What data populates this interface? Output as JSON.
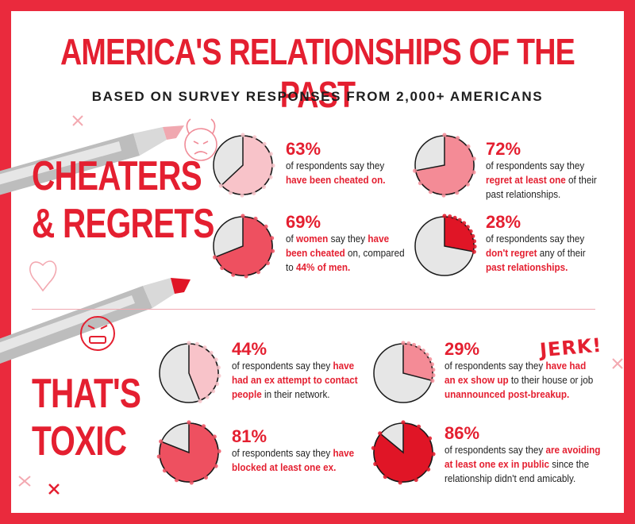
{
  "title": "AMERICA'S RELATIONSHIPS OF THE PAST",
  "subtitle": "BASED ON SURVEY RESPONSES FROM 2,000+ AMERICANS",
  "sections": {
    "cheaters": {
      "line1": "CHEATERS",
      "line2": "& REGRETS"
    },
    "toxic": {
      "line1": "THAT'S",
      "line2": "TOXIC"
    }
  },
  "jerk": "JERK!",
  "colors": {
    "accent": "#e41f30",
    "pink": "#f6b6bd",
    "grey": "#e6e6e6"
  },
  "stats": [
    {
      "id": "cheated",
      "value": 63,
      "pct": "63%",
      "fill": "#f8c3c9",
      "parts": [
        [
          "of respondents say they",
          false
        ],
        [
          "\n",
          false
        ],
        [
          "have been cheated on.",
          true
        ]
      ]
    },
    {
      "id": "regret",
      "value": 72,
      "pct": "72%",
      "fill": "#f48b96",
      "parts": [
        [
          "of respondents say they",
          false
        ],
        [
          "\n",
          false
        ],
        [
          "regret at least one",
          true
        ],
        [
          " of their",
          false
        ],
        [
          "\n",
          false
        ],
        [
          "past relationships.",
          false
        ]
      ]
    },
    {
      "id": "women",
      "value": 69,
      "pct": "69%",
      "fill": "#ee5060",
      "parts": [
        [
          "of ",
          false
        ],
        [
          "women",
          true
        ],
        [
          " say they ",
          false
        ],
        [
          "have",
          true
        ],
        [
          "\n",
          false
        ],
        [
          "been cheated",
          true
        ],
        [
          " on, compared",
          false
        ],
        [
          "\n",
          false
        ],
        [
          "to ",
          false
        ],
        [
          "44% of men.",
          true
        ]
      ]
    },
    {
      "id": "noregret",
      "value": 28,
      "pct": "28%",
      "fill": "#e01526",
      "parts": [
        [
          "of respondents say they",
          false
        ],
        [
          "\n",
          false
        ],
        [
          "don't regret",
          true
        ],
        [
          " any of their",
          false
        ],
        [
          "\n",
          false
        ],
        [
          "past relationships.",
          true
        ]
      ]
    },
    {
      "id": "contact",
      "value": 44,
      "pct": "44%",
      "fill": "#f8c3c9",
      "parts": [
        [
          "of respondents say they ",
          false
        ],
        [
          "have",
          true
        ],
        [
          "\n",
          false
        ],
        [
          "had an ex attempt to contact",
          true
        ],
        [
          "\n",
          false
        ],
        [
          "people",
          true
        ],
        [
          " in their network.",
          false
        ]
      ]
    },
    {
      "id": "showup",
      "value": 29,
      "pct": "29%",
      "fill": "#f48b96",
      "parts": [
        [
          "of respondents say they ",
          false
        ],
        [
          "have had",
          true
        ],
        [
          "\n",
          false
        ],
        [
          "an ex show up",
          true
        ],
        [
          " to their house or job",
          false
        ],
        [
          "\n",
          false
        ],
        [
          "unannounced post-breakup.",
          true
        ]
      ]
    },
    {
      "id": "blocked",
      "value": 81,
      "pct": "81%",
      "fill": "#ee5060",
      "parts": [
        [
          "of respondents say they ",
          false
        ],
        [
          "have",
          true
        ],
        [
          "\n",
          false
        ],
        [
          "blocked at least one ex.",
          true
        ]
      ]
    },
    {
      "id": "avoiding",
      "value": 86,
      "pct": "86%",
      "fill": "#e01526",
      "parts": [
        [
          "of respondents say they ",
          false
        ],
        [
          "are avoiding",
          true
        ],
        [
          "\n",
          false
        ],
        [
          "at least one ex in public",
          true
        ],
        [
          " since the",
          false
        ],
        [
          "\n",
          false
        ],
        [
          "relationship didn't end amicably.",
          false
        ]
      ]
    }
  ]
}
